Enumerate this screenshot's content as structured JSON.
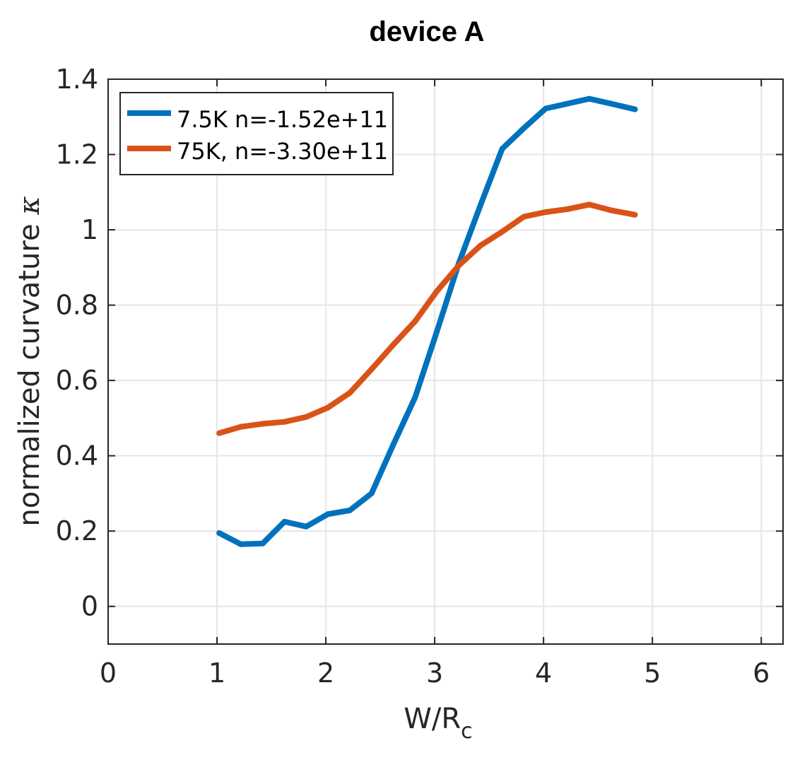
{
  "chart_data": {
    "type": "line",
    "title": "device A",
    "xlabel": "W/R",
    "xlabel_sub": "c",
    "ylabel": "normalized curvature",
    "ylabel_symbol": "κ",
    "xlim": [
      0,
      6.2
    ],
    "ylim": [
      -0.1,
      1.4
    ],
    "xticks": [
      "0",
      "1",
      "2",
      "3",
      "4",
      "5",
      "6"
    ],
    "yticks": [
      "0",
      "0.2",
      "0.4",
      "0.6",
      "0.8",
      "1",
      "1.2",
      "1.4"
    ],
    "grid": true,
    "legend_position": "top-left",
    "series": [
      {
        "name": "7.5K n=-1.52e+11",
        "color": "#0072BD",
        "x": [
          1.02,
          1.22,
          1.42,
          1.62,
          1.82,
          2.02,
          2.22,
          2.42,
          2.62,
          2.82,
          3.02,
          3.22,
          3.42,
          3.62,
          3.82,
          4.02,
          4.22,
          4.42,
          4.62,
          4.84
        ],
        "y": [
          0.195,
          0.165,
          0.167,
          0.225,
          0.212,
          0.245,
          0.255,
          0.3,
          0.43,
          0.555,
          0.73,
          0.91,
          1.065,
          1.215,
          1.27,
          1.322,
          1.335,
          1.348,
          1.335,
          1.32
        ]
      },
      {
        "name": "75K, n=-3.30e+11",
        "color": "#D95319",
        "x": [
          1.02,
          1.22,
          1.42,
          1.62,
          1.82,
          2.02,
          2.22,
          2.42,
          2.62,
          2.82,
          3.02,
          3.22,
          3.42,
          3.62,
          3.82,
          4.02,
          4.22,
          4.42,
          4.62,
          4.84
        ],
        "y": [
          0.46,
          0.477,
          0.485,
          0.49,
          0.503,
          0.528,
          0.567,
          0.63,
          0.695,
          0.757,
          0.837,
          0.905,
          0.958,
          0.995,
          1.035,
          1.047,
          1.055,
          1.067,
          1.052,
          1.04
        ]
      }
    ]
  }
}
